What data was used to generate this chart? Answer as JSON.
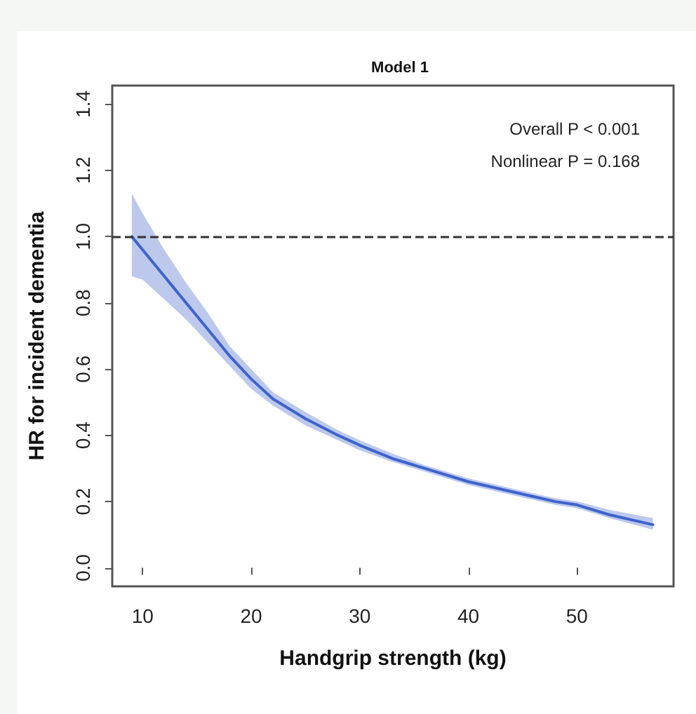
{
  "chart_data": {
    "type": "line",
    "title": "Model 1",
    "xlabel": "Handgrip strength (kg)",
    "ylabel": "HR for incident dementia",
    "annotations": [
      "Overall P < 0.001",
      "Nonlinear P = 0.168"
    ],
    "x": [
      9,
      10,
      12,
      14,
      16,
      18,
      20,
      22,
      25,
      28,
      30,
      33,
      36,
      40,
      44,
      48,
      50,
      53,
      57
    ],
    "series": [
      {
        "color": "#3f63cc",
        "values": [
          1.0,
          0.96,
          0.88,
          0.8,
          0.72,
          0.64,
          0.57,
          0.51,
          0.45,
          0.4,
          0.37,
          0.33,
          0.3,
          0.26,
          0.23,
          0.2,
          0.19,
          0.16,
          0.13
        ],
        "lower": [
          0.88,
          0.87,
          0.81,
          0.75,
          0.68,
          0.61,
          0.54,
          0.49,
          0.43,
          0.385,
          0.355,
          0.32,
          0.29,
          0.25,
          0.22,
          0.19,
          0.18,
          0.15,
          0.115
        ],
        "upper": [
          1.13,
          1.07,
          0.96,
          0.86,
          0.77,
          0.67,
          0.6,
          0.53,
          0.47,
          0.415,
          0.385,
          0.345,
          0.31,
          0.27,
          0.24,
          0.21,
          0.2,
          0.175,
          0.15
        ]
      }
    ],
    "xlim": [
      7.2,
      58.9
    ],
    "xticks": [
      10,
      20,
      30,
      40,
      50
    ],
    "ylim": [
      -0.056,
      1.456
    ],
    "yticks": [
      {
        "value": 0,
        "label": "0.0"
      },
      0.2,
      0.4,
      0.6,
      0.8,
      {
        "value": 1,
        "label": "1.0"
      },
      1.2,
      1.4
    ],
    "ref_lines": [
      {
        "axis": "y",
        "value": 1.0,
        "color": "#333333",
        "line_style": "dashed"
      }
    ],
    "grid": false,
    "marker": "none",
    "line_style": "solid"
  }
}
